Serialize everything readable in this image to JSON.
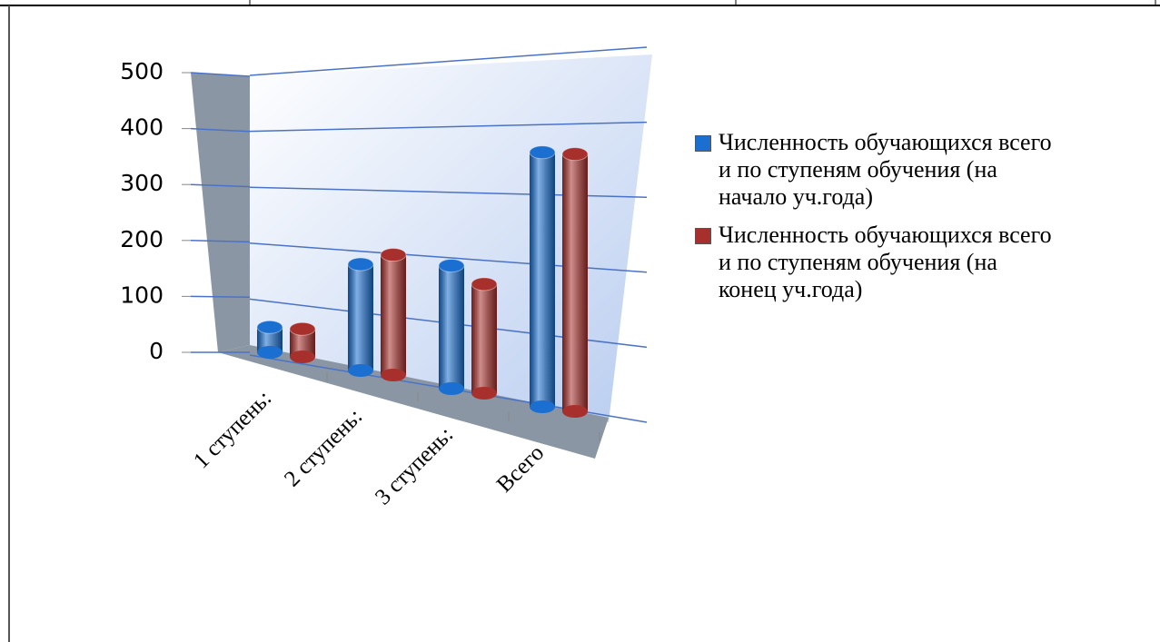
{
  "chart_data": {
    "type": "bar3d",
    "categories": [
      "1 ступень:",
      "2 ступень:",
      "3 ступень:",
      "Всего"
    ],
    "series": [
      {
        "name": "Численность обучающихся всего и по ступеням обучения (на начало уч.года)",
        "color": "#1a6fd1",
        "values": [
          45,
          190,
          220,
          455
        ]
      },
      {
        "name": "Численность обучающихся всего и по ступеням обучения (на конец уч.года)",
        "color": "#a8302c",
        "values": [
          50,
          215,
          195,
          460
        ]
      }
    ],
    "ylim": [
      0,
      500
    ],
    "yticks": [
      0,
      100,
      200,
      300,
      400,
      500
    ],
    "grid": true,
    "legend": "right"
  }
}
